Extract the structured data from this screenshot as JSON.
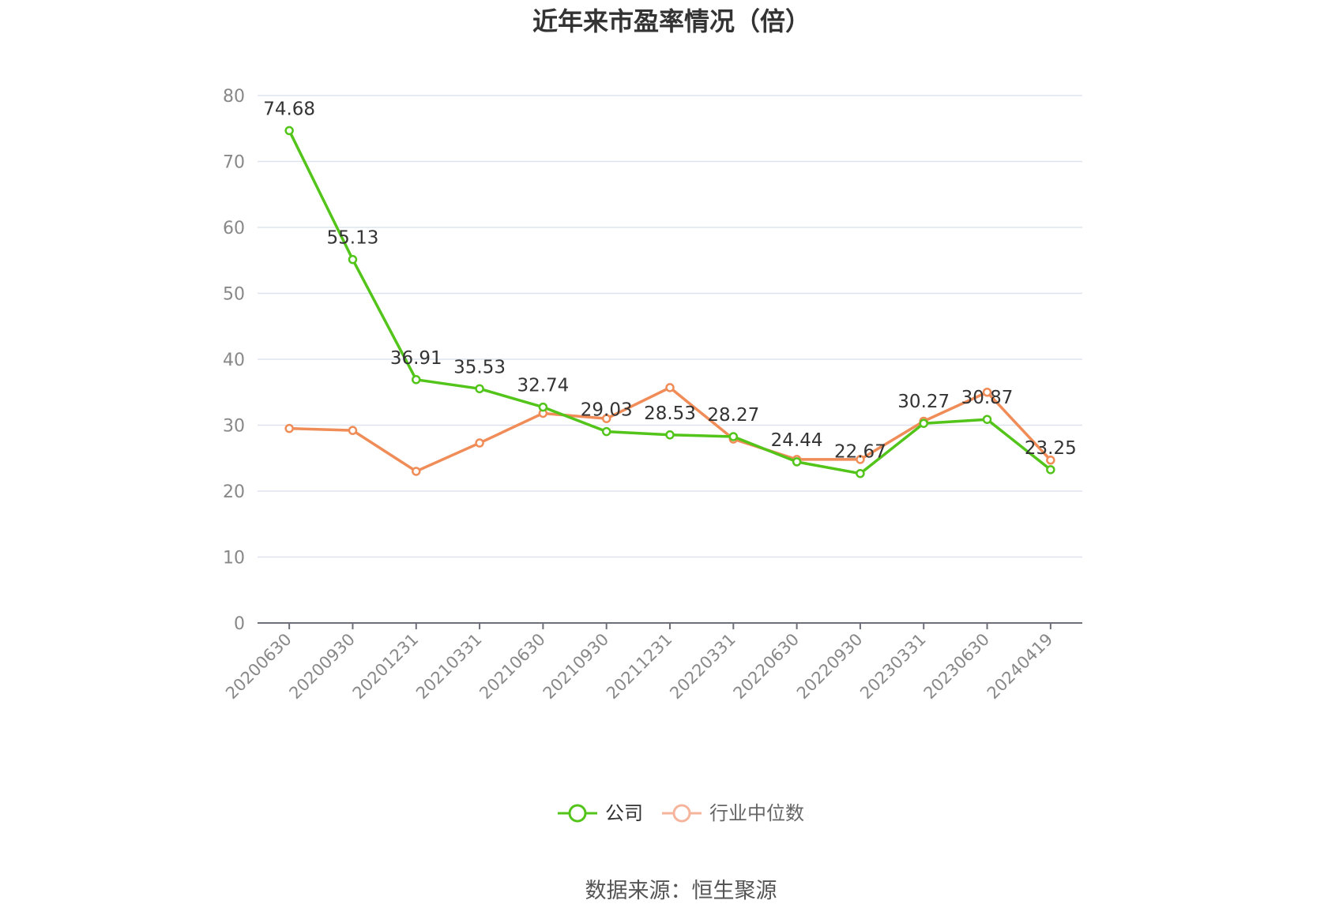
{
  "chart_data": {
    "type": "line",
    "title": "近年来市盈率情况（倍）",
    "categories": [
      "20200630",
      "20200930",
      "20201231",
      "20210331",
      "20210630",
      "20210930",
      "20211231",
      "20220331",
      "20220630",
      "20220930",
      "20230331",
      "20230630",
      "20240419"
    ],
    "series": [
      {
        "name": "公司",
        "color": "#52c41a",
        "values": [
          74.68,
          55.13,
          36.91,
          35.53,
          32.74,
          29.03,
          28.53,
          28.27,
          24.44,
          22.67,
          30.27,
          30.87,
          23.25
        ],
        "show_labels": true
      },
      {
        "name": "行业中位数",
        "color": "#f08c57",
        "values": [
          29.5,
          29.2,
          23.0,
          27.3,
          31.8,
          31.0,
          35.7,
          27.9,
          24.8,
          24.8,
          30.6,
          35.0,
          24.7
        ],
        "show_labels": false
      }
    ],
    "y_ticks": [
      0,
      10,
      20,
      30,
      40,
      50,
      60,
      70,
      80
    ],
    "ylim": [
      0,
      80
    ],
    "grid": true,
    "legend": "bottom-center"
  },
  "legend_colors": {
    "company_text": "#333333",
    "industry_text": "#666666",
    "industry_marker": "#f5b49b"
  },
  "footer": {
    "source": "数据来源：恒生聚源"
  }
}
